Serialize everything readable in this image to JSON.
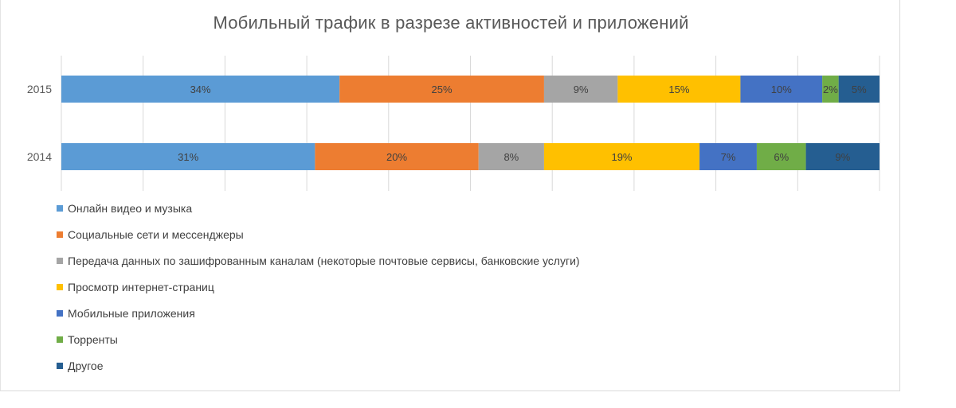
{
  "chart_data": {
    "type": "stacked-bar-horizontal",
    "title": "Мобильный трафик в разрезе активностей и приложений",
    "categories": [
      "2015",
      "2014"
    ],
    "xlim": [
      0,
      100
    ],
    "grid": true,
    "legend_position": "bottom-left",
    "series": [
      {
        "name": "Онлайн видео и музыка",
        "color": "#5B9BD5",
        "values": [
          34,
          31
        ],
        "labels": [
          "34%",
          "31%"
        ]
      },
      {
        "name": "Социальные сети и мессенджеры",
        "color": "#ED7D31",
        "values": [
          25,
          20
        ],
        "labels": [
          "25%",
          "20%"
        ]
      },
      {
        "name": "Передача данных по зашифрованным каналам (некоторые почтовые сервисы, банковские услуги)",
        "color": "#A5A5A5",
        "values": [
          9,
          8
        ],
        "labels": [
          "9%",
          "8%"
        ]
      },
      {
        "name": "Просмотр интернет-страниц",
        "color": "#FFC000",
        "values": [
          15,
          19
        ],
        "labels": [
          "15%",
          "19%"
        ]
      },
      {
        "name": "Мобильные приложения",
        "color": "#4472C4",
        "values": [
          10,
          7
        ],
        "labels": [
          "10%",
          "7%"
        ]
      },
      {
        "name": "Торренты",
        "color": "#70AD47",
        "values": [
          2,
          6
        ],
        "labels": [
          "2%",
          "6%"
        ]
      },
      {
        "name": "Другое",
        "color": "#255E91",
        "values": [
          5,
          9
        ],
        "labels": [
          "5%",
          "9%"
        ]
      }
    ]
  }
}
